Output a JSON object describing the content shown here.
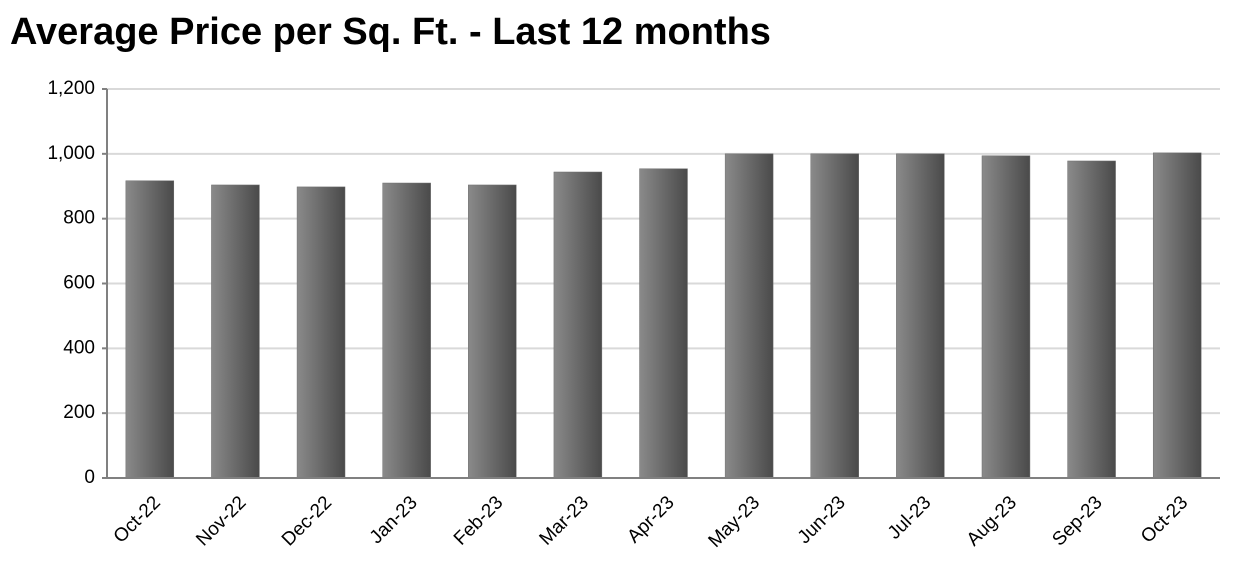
{
  "chart_data": {
    "type": "bar",
    "title": "Average Price per Sq. Ft. - Last 12 months",
    "categories": [
      "Oct-22",
      "Nov-22",
      "Dec-22",
      "Jan-23",
      "Feb-23",
      "Mar-23",
      "Apr-23",
      "May-23",
      "Jun-23",
      "Jul-23",
      "Aug-23",
      "Sep-23",
      "Oct-23"
    ],
    "values": [
      917,
      904,
      898,
      910,
      904,
      944,
      954,
      1000,
      1000,
      1000,
      994,
      978,
      1003
    ],
    "color": "#6e6e6e",
    "ylim": [
      0,
      1200
    ],
    "yticks": [
      0,
      200,
      400,
      600,
      800,
      {
        "value": 1000,
        "label": "1,000"
      },
      {
        "value": 1200,
        "label": "1,200"
      }
    ],
    "grid": true
  }
}
